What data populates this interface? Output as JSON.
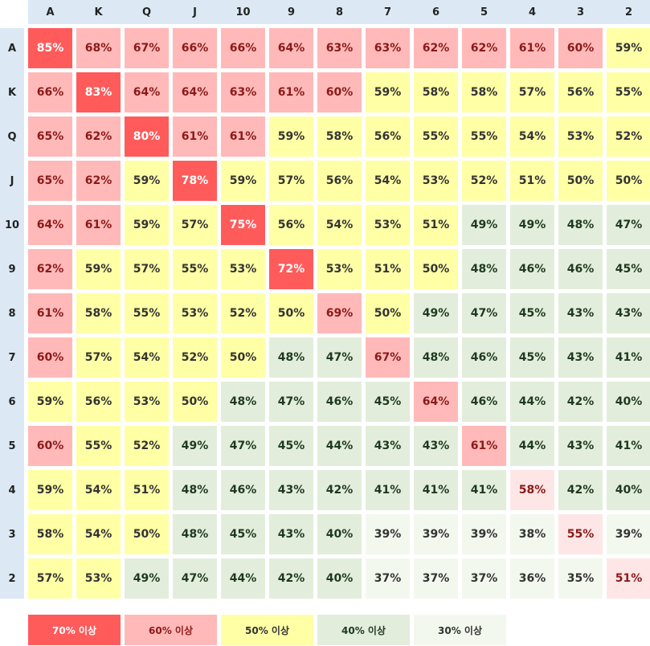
{
  "table": {
    "columns": [
      "A",
      "K",
      "Q",
      "J",
      "10",
      "9",
      "8",
      "7",
      "6",
      "5",
      "4",
      "3",
      "2"
    ],
    "row_labels": [
      "A",
      "K",
      "Q",
      "J",
      "10",
      "9",
      "8",
      "7",
      "6",
      "5",
      "4",
      "3",
      "2"
    ],
    "rows": [
      [
        "85%",
        "68%",
        "67%",
        "66%",
        "66%",
        "64%",
        "63%",
        "63%",
        "62%",
        "62%",
        "61%",
        "60%",
        "59%"
      ],
      [
        "66%",
        "83%",
        "64%",
        "64%",
        "63%",
        "61%",
        "60%",
        "59%",
        "58%",
        "58%",
        "57%",
        "56%",
        "55%"
      ],
      [
        "65%",
        "62%",
        "80%",
        "61%",
        "61%",
        "59%",
        "58%",
        "56%",
        "55%",
        "55%",
        "54%",
        "53%",
        "52%"
      ],
      [
        "65%",
        "62%",
        "59%",
        "78%",
        "59%",
        "57%",
        "56%",
        "54%",
        "53%",
        "52%",
        "51%",
        "50%",
        "50%"
      ],
      [
        "64%",
        "61%",
        "59%",
        "57%",
        "75%",
        "56%",
        "54%",
        "53%",
        "51%",
        "49%",
        "49%",
        "48%",
        "47%"
      ],
      [
        "62%",
        "59%",
        "57%",
        "55%",
        "53%",
        "72%",
        "53%",
        "51%",
        "50%",
        "48%",
        "46%",
        "46%",
        "45%"
      ],
      [
        "61%",
        "58%",
        "55%",
        "53%",
        "52%",
        "50%",
        "69%",
        "50%",
        "49%",
        "47%",
        "45%",
        "43%",
        "43%"
      ],
      [
        "60%",
        "57%",
        "54%",
        "52%",
        "50%",
        "48%",
        "47%",
        "67%",
        "48%",
        "46%",
        "45%",
        "43%",
        "41%"
      ],
      [
        "59%",
        "56%",
        "53%",
        "50%",
        "48%",
        "47%",
        "46%",
        "45%",
        "64%",
        "46%",
        "44%",
        "42%",
        "40%"
      ],
      [
        "60%",
        "55%",
        "52%",
        "49%",
        "47%",
        "45%",
        "44%",
        "43%",
        "43%",
        "61%",
        "44%",
        "43%",
        "41%"
      ],
      [
        "59%",
        "54%",
        "51%",
        "48%",
        "46%",
        "43%",
        "42%",
        "41%",
        "41%",
        "41%",
        "58%",
        "42%",
        "40%"
      ],
      [
        "58%",
        "54%",
        "50%",
        "48%",
        "45%",
        "43%",
        "40%",
        "39%",
        "39%",
        "39%",
        "38%",
        "55%",
        "39%"
      ],
      [
        "57%",
        "53%",
        "49%",
        "47%",
        "44%",
        "42%",
        "40%",
        "37%",
        "37%",
        "37%",
        "36%",
        "35%",
        "51%"
      ]
    ],
    "pair_color": "#ffe6e6",
    "pair_text_color": "#8b1a1a"
  },
  "legend": [
    {
      "label": "70% 이상",
      "color": "#ff5b5b",
      "text_color": "#ffffff"
    },
    {
      "label": "60% 이상",
      "color": "#ffb9b9",
      "text_color": "#8b1a1a"
    },
    {
      "label": "50% 이상",
      "color": "#ffffa6",
      "text_color": "#333333"
    },
    {
      "label": "40% 이상",
      "color": "#e2eedb",
      "text_color": "#1e3a1e"
    },
    {
      "label": "30% 이상",
      "color": "#f3f8ee",
      "text_color": "#333333"
    }
  ]
}
